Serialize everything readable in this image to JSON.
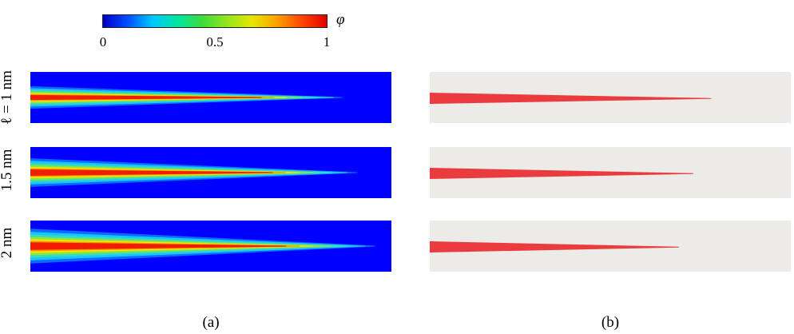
{
  "colorbar": {
    "symbol": "φ",
    "ticks": [
      "0",
      "0.5",
      "1"
    ],
    "tick_fractions": [
      0,
      0.5,
      1
    ],
    "stops": [
      "#0000c8",
      "#0050ff",
      "#00c8ff",
      "#00e6a0",
      "#3cdc3c",
      "#96e61e",
      "#e6e600",
      "#ffa000",
      "#ff4600",
      "#e60000"
    ]
  },
  "rows": [
    {
      "label": "ℓ = 1 nm",
      "phase_field_length": 0.86,
      "phase_field_halfwidth": 0.22,
      "crack_length": 0.78
    },
    {
      "label": "1.5 nm",
      "phase_field_length": 0.9,
      "phase_field_halfwidth": 0.28,
      "crack_length": 0.73
    },
    {
      "label": "2 nm",
      "phase_field_length": 0.95,
      "phase_field_halfwidth": 0.34,
      "crack_length": 0.69
    }
  ],
  "colors": {
    "field_background": "#0000ff",
    "sharp_background": "#edebe8",
    "crack_red": "#ea3c3f"
  },
  "captions": {
    "left": "(a)",
    "right": "(b)"
  }
}
